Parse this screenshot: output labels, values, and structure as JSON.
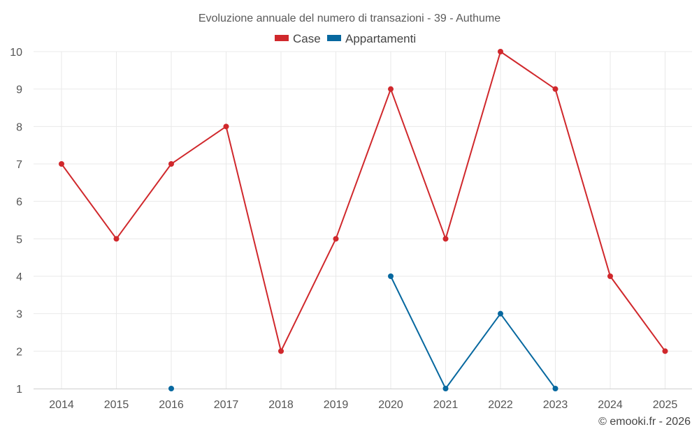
{
  "chart_data": {
    "type": "line",
    "title": "Evoluzione annuale del numero di transazioni - 39 - Authume",
    "categories": [
      "2014",
      "2015",
      "2016",
      "2017",
      "2018",
      "2019",
      "2020",
      "2021",
      "2022",
      "2023",
      "2024",
      "2025"
    ],
    "ylim": [
      1,
      10
    ],
    "yticks": [
      1,
      2,
      3,
      4,
      5,
      6,
      7,
      8,
      9,
      10
    ],
    "grid": true,
    "legend_position": "top-center",
    "series": [
      {
        "name": "Case",
        "color": "#d0282c",
        "values": [
          7,
          5,
          7,
          8,
          2,
          5,
          9,
          5,
          10,
          9,
          4,
          2
        ]
      },
      {
        "name": "Appartamenti",
        "color": "#07689f",
        "values": [
          null,
          null,
          1,
          null,
          null,
          null,
          4,
          1,
          3,
          1,
          null,
          null
        ]
      }
    ],
    "credit": "© emooki.fr - 2026"
  }
}
